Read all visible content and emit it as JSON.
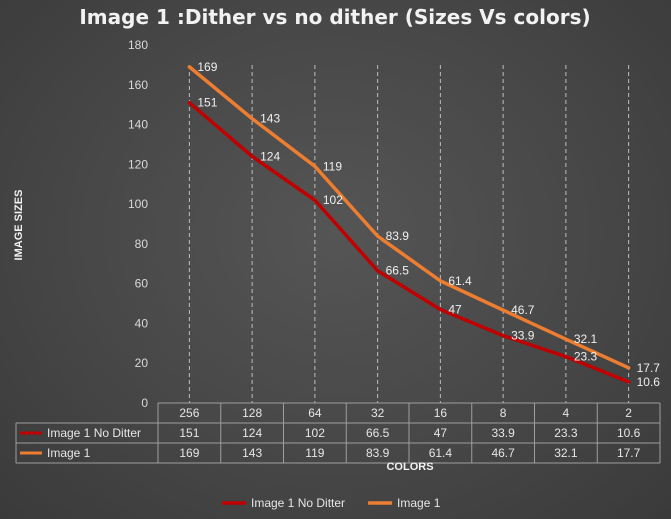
{
  "chart_data": {
    "type": "line",
    "title": "Image 1 :Dither vs no dither (Sizes Vs colors)",
    "xlabel": "COLORS",
    "ylabel": "IMAGE SIZES",
    "categories": [
      "256",
      "128",
      "64",
      "32",
      "16",
      "8",
      "4",
      "2"
    ],
    "ylim": [
      0,
      180
    ],
    "yticks": [
      0,
      20,
      40,
      60,
      80,
      100,
      120,
      140,
      160,
      180
    ],
    "series": [
      {
        "name": "Image 1 No Ditter",
        "color": "#c00000",
        "values": [
          151,
          124,
          102,
          66.5,
          47,
          33.9,
          23.3,
          10.6
        ]
      },
      {
        "name": "Image 1",
        "color": "#ed7d31",
        "values": [
          169,
          143,
          119,
          83.9,
          61.4,
          46.7,
          32.1,
          17.7
        ]
      }
    ],
    "data_table": true,
    "legend_position": "bottom",
    "gridlines": "vertical-dashed"
  }
}
